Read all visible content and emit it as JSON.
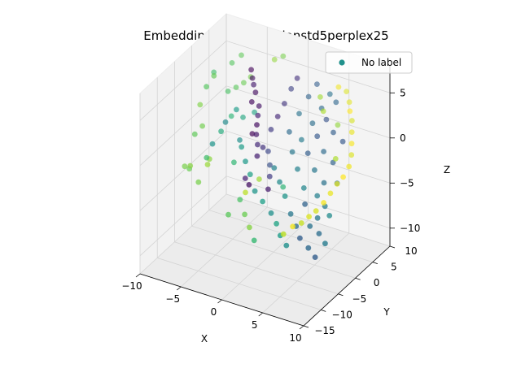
{
  "chart_data": {
    "type": "scatter",
    "title": "Embedding with gaussianstd5perplex25",
    "xlabel": "X",
    "ylabel": "Y",
    "zlabel": "Z",
    "xlim": [
      -10,
      10
    ],
    "ylim": [
      -15,
      10
    ],
    "zlim": [
      -12,
      8
    ],
    "xticks": [
      "−10",
      "−5",
      "0",
      "5",
      "10"
    ],
    "yticks": [
      "−15",
      "−10",
      "−5",
      "0",
      "5",
      "10"
    ],
    "zticks": [
      "−10",
      "−5",
      "0",
      "5"
    ],
    "grid": true,
    "legend_position": "top-right",
    "colormap": "viridis",
    "series": [
      {
        "name": "No label",
        "legend_color": "#21918c",
        "points": [
          [
            -9.6,
            -3.0,
            -4.2,
            0.8
          ],
          [
            -9.2,
            -2.6,
            -4.5,
            0.78
          ],
          [
            -8.8,
            -3.3,
            -3.8,
            0.82
          ],
          [
            -9.0,
            -1.5,
            -1.0,
            0.76
          ],
          [
            -8.5,
            -0.5,
            -0.3,
            0.79
          ],
          [
            -9.2,
            0.5,
            1.5,
            0.81
          ],
          [
            -8.0,
            -0.5,
            4.2,
            0.74
          ],
          [
            -7.5,
            0.5,
            5.2,
            0.77
          ],
          [
            -7.0,
            -2.0,
            -3.0,
            0.83
          ],
          [
            -6.8,
            -3.0,
            -3.2,
            0.85
          ],
          [
            -7.5,
            -4.0,
            -5.0,
            0.8
          ],
          [
            -6.5,
            -4.0,
            -2.0,
            0.7
          ],
          [
            -6.2,
            1.5,
            3.5,
            0.72
          ],
          [
            -5.6,
            2.4,
            3.8,
            0.75
          ],
          [
            -5.0,
            3.2,
            4.2,
            0.78
          ],
          [
            -4.4,
            3.8,
            4.8,
            0.8
          ],
          [
            -5.5,
            0.8,
            1.2,
            0.66
          ],
          [
            -6.0,
            -1.0,
            0.0,
            0.62
          ],
          [
            -4.5,
            1.8,
            1.0,
            0.6
          ],
          [
            -3.6,
            3.0,
            1.4,
            0.58
          ],
          [
            -4.0,
            -2.0,
            -2.5,
            0.67
          ],
          [
            -3.5,
            -1.0,
            -1.0,
            0.55
          ],
          [
            -4.0,
            3.0,
            6.0,
            0.02
          ],
          [
            -3.6,
            2.4,
            5.4,
            0.05
          ],
          [
            -3.2,
            1.8,
            5.0,
            0.08
          ],
          [
            -2.8,
            1.4,
            4.4,
            0.04
          ],
          [
            -3.0,
            0.8,
            3.5,
            0.03
          ],
          [
            -2.2,
            1.0,
            3.2,
            0.06
          ],
          [
            -2.0,
            0.2,
            2.5,
            0.1
          ],
          [
            -1.8,
            -0.6,
            1.8,
            0.04
          ],
          [
            -1.6,
            -1.2,
            1.0,
            0.07
          ],
          [
            -2.4,
            -0.5,
            0.6,
            0.02
          ],
          [
            -1.2,
            -1.8,
            0.2,
            0.12
          ],
          [
            -1.0,
            -2.4,
            -0.8,
            0.09
          ],
          [
            -0.8,
            -1.2,
            -0.2,
            0.15
          ],
          [
            -0.4,
            0.2,
            1.4,
            0.18
          ],
          [
            0.0,
            1.2,
            2.6,
            0.12
          ],
          [
            0.4,
            2.2,
            3.8,
            0.16
          ],
          [
            0.8,
            3.2,
            5.2,
            0.2
          ],
          [
            1.2,
            4.0,
            6.2,
            0.14
          ],
          [
            -1.0,
            0.8,
            -1.4,
            0.22
          ],
          [
            -0.2,
            -0.6,
            -2.2,
            0.25
          ],
          [
            0.2,
            -1.6,
            -3.0,
            0.18
          ],
          [
            0.6,
            -3.0,
            -3.8,
            0.08
          ],
          [
            -1.4,
            -3.8,
            -3.6,
            0.05
          ],
          [
            -2.2,
            -3.0,
            -3.4,
            0.1
          ],
          [
            1.5,
            1.0,
            1.4,
            0.35
          ],
          [
            2.2,
            2.2,
            3.2,
            0.38
          ],
          [
            2.8,
            3.5,
            4.8,
            0.32
          ],
          [
            3.4,
            4.5,
            6.0,
            0.3
          ],
          [
            2.5,
            -0.5,
            0.0,
            0.4
          ],
          [
            3.2,
            0.5,
            1.2,
            0.42
          ],
          [
            4.0,
            1.8,
            2.8,
            0.36
          ],
          [
            4.6,
            3.0,
            4.2,
            0.34
          ],
          [
            5.2,
            4.0,
            5.6,
            0.38
          ],
          [
            3.6,
            -1.6,
            -1.2,
            0.44
          ],
          [
            4.4,
            -0.5,
            0.4,
            0.3
          ],
          [
            5.0,
            0.8,
            2.0,
            0.28
          ],
          [
            5.6,
            2.0,
            3.6,
            0.26
          ],
          [
            6.2,
            3.4,
            5.2,
            0.33
          ],
          [
            4.8,
            -2.6,
            -2.6,
            0.46
          ],
          [
            5.6,
            -1.4,
            -0.8,
            0.4
          ],
          [
            6.2,
            -0.2,
            1.0,
            0.35
          ],
          [
            6.8,
            1.2,
            2.8,
            0.3
          ],
          [
            7.0,
            -2.0,
            -1.6,
            0.38
          ],
          [
            7.6,
            -0.8,
            0.4,
            0.32
          ],
          [
            8.2,
            0.6,
            2.4,
            0.28
          ],
          [
            7.8,
            -3.6,
            -3.4,
            0.42
          ],
          [
            8.6,
            -2.0,
            -1.2,
            0.36
          ],
          [
            -6.8,
            -1.6,
            -1.4,
            0.52
          ],
          [
            -5.8,
            -0.2,
            0.8,
            0.48
          ],
          [
            -4.8,
            0.6,
            2.2,
            0.55
          ],
          [
            -3.8,
            -0.8,
            -0.4,
            0.5
          ],
          [
            -2.6,
            -2.0,
            -2.0,
            0.54
          ],
          [
            -1.6,
            -3.0,
            -2.8,
            0.57
          ],
          [
            -0.6,
            -4.0,
            -4.0,
            0.52
          ],
          [
            0.6,
            -4.6,
            -4.6,
            0.56
          ],
          [
            1.8,
            -5.0,
            -5.4,
            0.5
          ],
          [
            2.8,
            -5.8,
            -6.0,
            0.58
          ],
          [
            3.6,
            -6.6,
            -6.8,
            0.55
          ],
          [
            4.6,
            -7.2,
            -7.4,
            0.5
          ],
          [
            1.0,
            -2.2,
            -1.6,
            0.45
          ],
          [
            2.0,
            -3.0,
            -2.6,
            0.48
          ],
          [
            3.0,
            -3.8,
            -3.6,
            0.52
          ],
          [
            4.2,
            -5.0,
            -4.8,
            0.4
          ],
          [
            5.2,
            -5.8,
            -5.6,
            0.36
          ],
          [
            6.0,
            -6.6,
            -6.4,
            0.3
          ],
          [
            6.8,
            -5.6,
            -5.2,
            0.38
          ],
          [
            5.6,
            -4.2,
            -3.6,
            0.32
          ],
          [
            6.6,
            -3.0,
            -2.8,
            0.44
          ],
          [
            7.4,
            -4.8,
            -4.4,
            0.4
          ],
          [
            8.0,
            -5.8,
            -5.6,
            0.36
          ],
          [
            8.6,
            -4.2,
            -4.0,
            0.48
          ],
          [
            7.2,
            -7.0,
            -7.0,
            0.34
          ],
          [
            8.2,
            -7.4,
            -7.6,
            0.3
          ],
          [
            9.0,
            -6.4,
            -6.2,
            0.42
          ],
          [
            -2.0,
            -5.0,
            -5.0,
            0.72
          ],
          [
            -1.0,
            -6.0,
            -6.0,
            0.78
          ],
          [
            0.0,
            -7.0,
            -6.8,
            0.82
          ],
          [
            -3.0,
            -6.0,
            -6.6,
            0.75
          ],
          [
            1.0,
            -8.0,
            -7.6,
            0.68
          ],
          [
            -0.5,
            -3.0,
            -3.0,
            0.86
          ],
          [
            -1.5,
            -4.6,
            -4.2,
            0.9
          ],
          [
            2.0,
            -2.0,
            -3.5,
            0.66
          ],
          [
            6.0,
            4.6,
            6.4,
            0.98
          ],
          [
            6.8,
            5.0,
            6.0,
            0.95
          ],
          [
            7.4,
            4.4,
            5.2,
            0.96
          ],
          [
            7.8,
            3.6,
            4.6,
            1.0
          ],
          [
            8.4,
            2.8,
            4.0,
            0.94
          ],
          [
            8.8,
            1.8,
            3.2,
            0.97
          ],
          [
            9.2,
            0.8,
            2.4,
            0.99
          ],
          [
            9.6,
            -0.2,
            1.6,
            0.95
          ],
          [
            9.8,
            -1.4,
            0.8,
            0.98
          ],
          [
            9.6,
            -2.6,
            0.0,
            1.0
          ],
          [
            9.2,
            -3.4,
            -0.6,
            0.96
          ],
          [
            8.8,
            -4.4,
            -1.4,
            0.97
          ],
          [
            8.4,
            -5.4,
            -2.2,
            0.99
          ],
          [
            7.8,
            -6.2,
            -3.0,
            0.94
          ],
          [
            7.2,
            -6.8,
            -3.6,
            0.95
          ],
          [
            6.6,
            -7.6,
            -4.2,
            0.92
          ],
          [
            5.8,
            -8.2,
            -4.6,
            0.98
          ],
          [
            5.0,
            -9.0,
            -5.4,
            0.9
          ],
          [
            5.4,
            1.6,
            4.6,
            0.88
          ],
          [
            4.6,
            2.6,
            5.6,
            0.86
          ],
          [
            7.0,
            2.0,
            3.4,
            0.84
          ],
          [
            8.0,
            -1.0,
            1.0,
            0.88
          ],
          [
            -8.4,
            2.6,
            4.6,
            0.7
          ],
          [
            -6.6,
            3.6,
            5.8,
            0.74
          ],
          [
            -5.8,
            4.4,
            6.6,
            0.76
          ],
          [
            -2.0,
            5.0,
            7.0,
            0.84
          ],
          [
            -1.2,
            5.6,
            7.4,
            0.8
          ]
        ]
      }
    ]
  }
}
